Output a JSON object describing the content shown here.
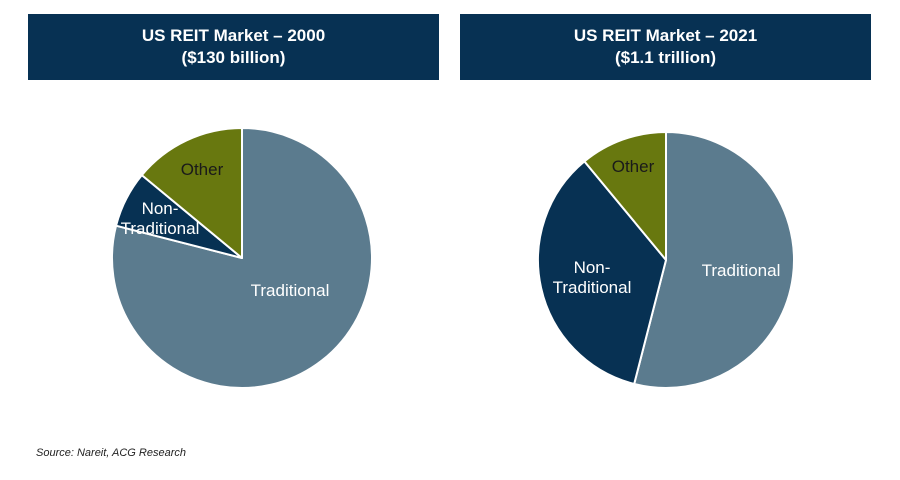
{
  "chart_data": [
    {
      "type": "pie",
      "title": "US REIT Market – 2000",
      "subtitle": "($130 billion)",
      "slices": [
        {
          "label": "Traditional",
          "value": 79,
          "color": "#5b7b8e"
        },
        {
          "label": "Non-Traditional",
          "value": 7,
          "color": "#073153"
        },
        {
          "label": "Other",
          "value": 14,
          "color": "#68780f"
        }
      ]
    },
    {
      "type": "pie",
      "title": "US REIT Market – 2021",
      "subtitle": "($1.1 trillion)",
      "slices": [
        {
          "label": "Traditional",
          "value": 54,
          "color": "#5b7b8e"
        },
        {
          "label": "Non-Traditional",
          "value": 35,
          "color": "#073153"
        },
        {
          "label": "Other",
          "value": 11,
          "color": "#68780f"
        }
      ]
    }
  ],
  "source": "Source:  Nareit, ACG Research"
}
